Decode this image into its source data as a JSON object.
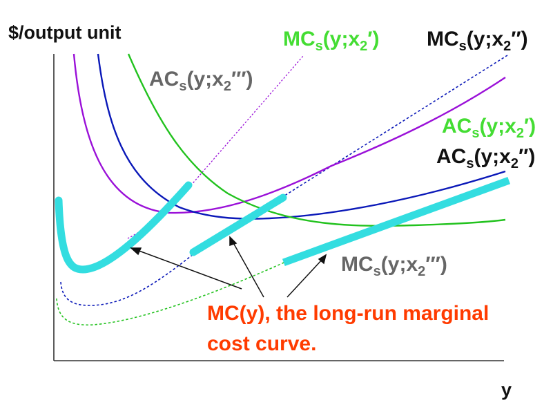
{
  "chart_data": {
    "type": "line",
    "title": "",
    "ylabel": "$/output unit",
    "xlabel": "y",
    "ticks": "none",
    "grid": false,
    "legend": "none (curves labelled directly)",
    "labels": {
      "mc_x2pp_main": "MC",
      "mc_x2pp_sub": "s",
      "mc_x2pp_args": "(y;x",
      "mc_x2pp_sub2": "2",
      "mc_x2pp_close": "′′)",
      "mc_x2p_main": "MC",
      "mc_x2p_sub": "s",
      "mc_x2p_args": "(y;x",
      "mc_x2p_sub2": "2",
      "mc_x2p_close": "′)",
      "ac_x2ppp_main": "AC",
      "ac_x2ppp_sub": "s",
      "ac_x2ppp_args": "(y;x",
      "ac_x2ppp_sub2": "2",
      "ac_x2ppp_close": "′′′)",
      "ac_x2p_main": "AC",
      "ac_x2p_sub": "s",
      "ac_x2p_args": "(y;x",
      "ac_x2p_sub2": "2",
      "ac_x2p_close": "′)",
      "ac_x2pp_main": "AC",
      "ac_x2pp_sub": "s",
      "ac_x2pp_args": "(y;x",
      "ac_x2pp_sub2": "2",
      "ac_x2pp_close": "′′)",
      "mc_x2ppp_main": "MC",
      "mc_x2ppp_sub": "s",
      "mc_x2ppp_args": "(y;x",
      "mc_x2ppp_sub2": "2",
      "mc_x2ppp_close": "′′′)",
      "annotation_line1": "MC(y), the long-run marginal",
      "annotation_line2": "cost curve."
    },
    "colors": {
      "ac_x2ppp": "#9a10d8",
      "ac_x2pp": "#0a18b8",
      "ac_x2p": "#22c21e",
      "mc_x2ppp": "#9a10d8",
      "mc_x2pp": "#0a18b8",
      "mc_x2p": "#22c21e",
      "long_run_mc": "#33dde0",
      "label_gray": "#666666",
      "label_green": "#44dd33",
      "annotation": "#ff3b00",
      "axis": "#333333"
    }
  }
}
